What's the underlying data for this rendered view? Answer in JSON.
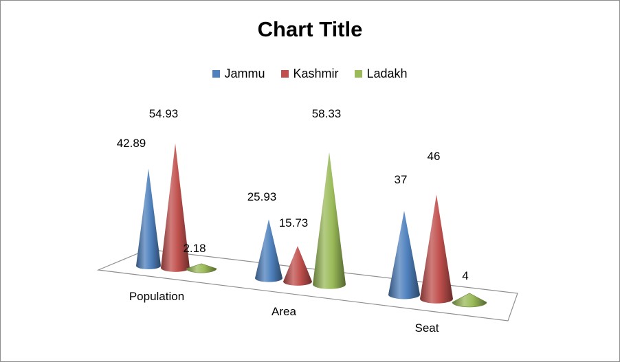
{
  "chart_data": {
    "type": "bar",
    "style": "3d-cone",
    "title": "Chart Title",
    "xlabel": "",
    "ylabel": "",
    "ylim": [
      0,
      60
    ],
    "grid": false,
    "legend_position": "top",
    "categories": [
      "Population",
      "Area",
      "Seat"
    ],
    "series": [
      {
        "name": "Jammu",
        "color": "#4f81bd",
        "values": [
          42.89,
          25.93,
          37
        ]
      },
      {
        "name": "Kashmir",
        "color": "#c0504d",
        "values": [
          54.93,
          15.73,
          46
        ]
      },
      {
        "name": "Ladakh",
        "color": "#9bbb59",
        "values": [
          2.18,
          58.33,
          4
        ]
      }
    ]
  }
}
